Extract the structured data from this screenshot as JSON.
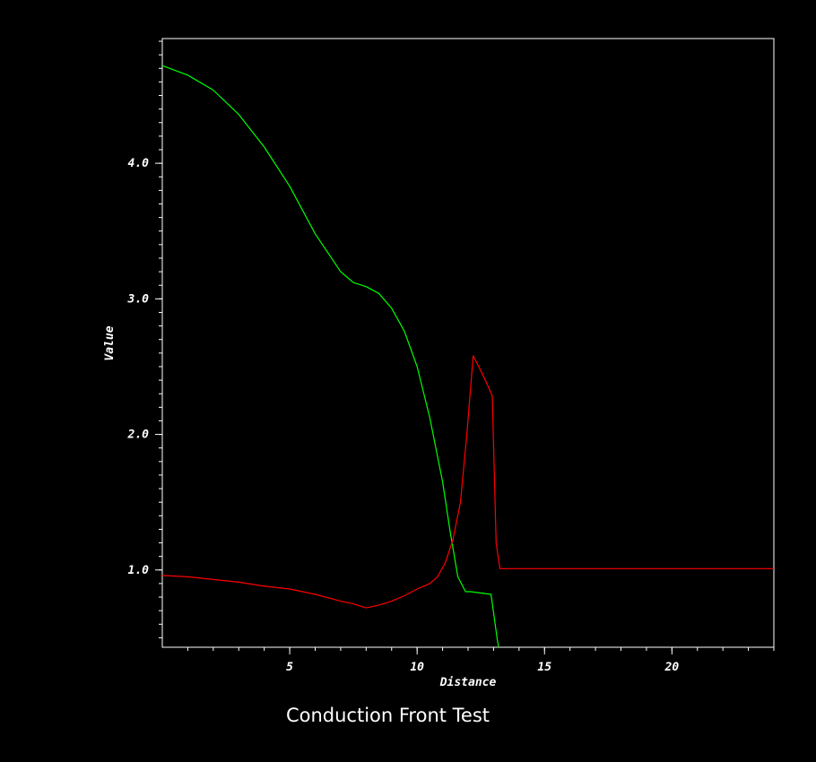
{
  "chart_data": {
    "type": "line",
    "title": "Conduction Front Test",
    "xlabel": "Distance",
    "ylabel": "Value",
    "xlim": [
      0,
      24
    ],
    "ylim": [
      0.43,
      4.92
    ],
    "x_ticks": [
      5,
      10,
      15,
      20
    ],
    "x_tick_labels": [
      "5",
      "10",
      "15",
      "20"
    ],
    "y_ticks": [
      1.0,
      2.0,
      3.0,
      4.0
    ],
    "y_tick_labels": [
      "1.0",
      "2.0",
      "3.0",
      "4.0"
    ],
    "grid": false,
    "background": "#000000",
    "frame_color": "#ffffff",
    "series": [
      {
        "color": "#00ff00",
        "x": [
          0,
          1,
          2,
          3,
          4,
          5,
          6,
          7,
          7.5,
          8,
          8.5,
          9,
          9.5,
          10,
          10.5,
          11,
          11.3,
          11.6,
          11.9,
          12.1,
          12.5,
          12.9,
          13.05,
          13.15,
          13.2
        ],
        "y": [
          4.72,
          4.65,
          4.54,
          4.36,
          4.12,
          3.83,
          3.48,
          3.2,
          3.12,
          3.09,
          3.04,
          2.93,
          2.76,
          2.5,
          2.12,
          1.65,
          1.28,
          0.95,
          0.84,
          0.84,
          0.83,
          0.82,
          0.62,
          0.48,
          0.43
        ]
      },
      {
        "color": "#ff0000",
        "x": [
          0,
          1,
          2,
          3,
          4,
          5,
          6,
          7,
          7.5,
          8,
          8.5,
          9,
          9.5,
          10,
          10.5,
          10.8,
          11.1,
          11.4,
          11.7,
          11.95,
          12.2,
          12.5,
          12.8,
          12.95,
          13.1,
          13.25,
          14,
          16,
          18,
          20,
          22,
          24
        ],
        "y": [
          0.96,
          0.95,
          0.93,
          0.91,
          0.88,
          0.86,
          0.82,
          0.77,
          0.75,
          0.72,
          0.74,
          0.77,
          0.81,
          0.86,
          0.9,
          0.95,
          1.05,
          1.22,
          1.5,
          2.0,
          2.58,
          2.47,
          2.35,
          2.28,
          1.2,
          1.01,
          1.01,
          1.01,
          1.01,
          1.01,
          1.01,
          1.01
        ]
      }
    ]
  }
}
